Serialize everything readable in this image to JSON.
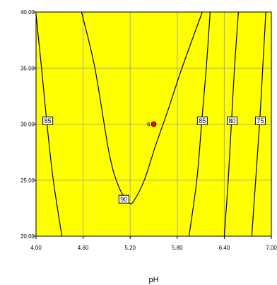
{
  "chart_data": {
    "type": "contour",
    "xlabel": "pH",
    "ylabel": "",
    "xlim": [
      4.0,
      7.0
    ],
    "ylim": [
      20.0,
      40.0
    ],
    "x_ticks": [
      4.0,
      4.6,
      5.2,
      5.8,
      6.4,
      7.0
    ],
    "x_tick_labels": [
      "4.00",
      "4.60",
      "5.20",
      "5.80",
      "6.40",
      "7.00"
    ],
    "y_ticks": [
      20.0,
      25.0,
      30.0,
      35.0,
      40.0
    ],
    "y_tick_labels": [
      "20.00",
      "25.00",
      "30.00",
      "35.00",
      "40.00"
    ],
    "grid": true,
    "background_color": "#ffff00",
    "grid_color": "#a6a6a6",
    "contours": [
      {
        "level": "85",
        "points": [
          [
            4.0,
            39.8
          ],
          [
            4.07,
            35.0
          ],
          [
            4.14,
            30.0
          ],
          [
            4.22,
            25.0
          ],
          [
            4.33,
            20.0
          ]
        ],
        "label_at": [
          4.15,
          30.3
        ]
      },
      {
        "level": "90",
        "points": [
          [
            4.58,
            40.0
          ],
          [
            4.75,
            35.0
          ],
          [
            4.93,
            27.5
          ],
          [
            5.05,
            24.5
          ],
          [
            5.18,
            23.0
          ],
          [
            5.25,
            23.2
          ],
          [
            5.38,
            25.0
          ],
          [
            5.52,
            28.0
          ],
          [
            5.67,
            31.0
          ],
          [
            5.86,
            35.0
          ],
          [
            6.12,
            40.0
          ]
        ],
        "label_at": [
          5.12,
          23.3
        ]
      },
      {
        "level": "85",
        "points": [
          [
            5.95,
            20.0
          ],
          [
            6.05,
            25.0
          ],
          [
            6.11,
            30.0
          ],
          [
            6.17,
            35.0
          ],
          [
            6.22,
            40.0
          ]
        ],
        "label_at": [
          6.12,
          30.3
        ]
      },
      {
        "level": "80",
        "points": [
          [
            6.4,
            20.0
          ],
          [
            6.45,
            25.0
          ],
          [
            6.49,
            30.0
          ],
          [
            6.53,
            35.0
          ],
          [
            6.58,
            40.0
          ]
        ],
        "label_at": [
          6.5,
          30.3
        ]
      },
      {
        "level": "75",
        "points": [
          [
            6.75,
            20.0
          ],
          [
            6.8,
            25.0
          ],
          [
            6.85,
            30.0
          ],
          [
            6.89,
            35.0
          ],
          [
            6.93,
            40.0
          ]
        ],
        "label_at": [
          6.86,
          30.3
        ]
      }
    ],
    "design_point": {
      "x": 5.5,
      "y": 30.0,
      "label": "6",
      "color": "#ff0000"
    }
  }
}
